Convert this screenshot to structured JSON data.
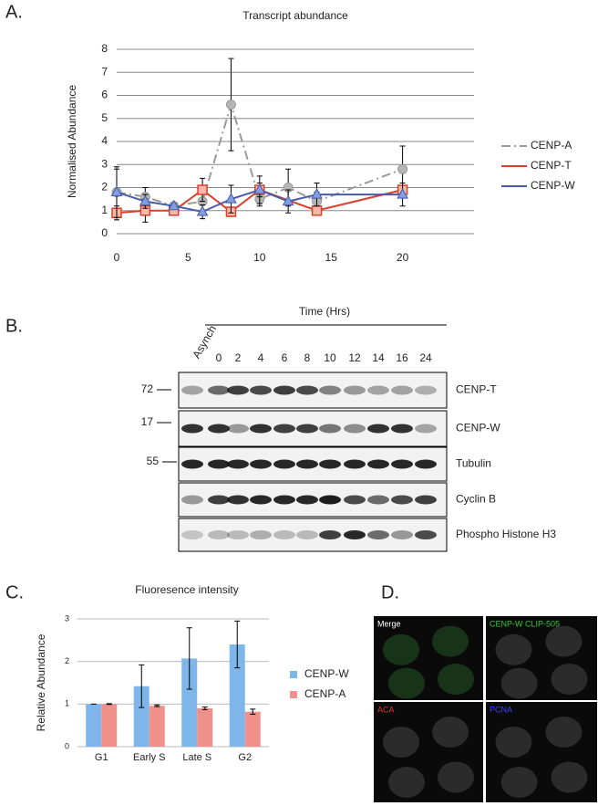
{
  "panel_labels": [
    "A.",
    "B.",
    "C.",
    "D."
  ],
  "chart_data": [
    {
      "type": "line",
      "title": "Transcript abundance",
      "y_label": "Normalised Abundance",
      "xlim": [
        0,
        25
      ],
      "xticks": [
        0,
        5,
        10,
        15,
        20
      ],
      "ylim": [
        0,
        8
      ],
      "yticks": [
        0,
        1,
        2,
        3,
        4,
        5,
        6,
        7,
        8
      ],
      "grid": true,
      "series": [
        {
          "name": "CENP-A",
          "color": "#9a9a9a",
          "x": [
            0,
            2,
            4,
            6,
            8,
            10,
            12,
            14,
            20
          ],
          "values": [
            1.8,
            1.6,
            1.2,
            1.4,
            5.6,
            1.5,
            2.0,
            1.4,
            2.8
          ],
          "errors": [
            1.0,
            0.4,
            0.1,
            0.5,
            2.0,
            0.3,
            0.8,
            0.4,
            1.0
          ]
        },
        {
          "name": "CENP-T",
          "color": "#d9412b",
          "x": [
            0,
            2,
            4,
            6,
            8,
            10,
            14,
            20
          ],
          "values": [
            0.9,
            1.0,
            1.0,
            1.9,
            0.95,
            1.9,
            1.0,
            1.9
          ],
          "errors": [
            0.3,
            0.5,
            0.1,
            0.5,
            0.2,
            0.3,
            0.1,
            0.1
          ]
        },
        {
          "name": "CENP-W",
          "color": "#4a5aa8",
          "x": [
            0,
            2,
            4,
            6,
            8,
            10,
            12,
            14,
            20
          ],
          "values": [
            1.8,
            1.4,
            1.2,
            0.95,
            1.5,
            1.9,
            1.4,
            1.7,
            1.7
          ],
          "errors": [
            1.1,
            0.3,
            0.1,
            0.3,
            0.6,
            0.6,
            0.5,
            0.5,
            0.5
          ]
        }
      ]
    },
    {
      "type": "bar",
      "title": "Fluoresence intensity",
      "y_label": "Relative Abundance",
      "categories": [
        "G1",
        "Early S",
        "Late S",
        "G2"
      ],
      "ylim": [
        0,
        3
      ],
      "yticks": [
        0,
        1,
        2,
        3
      ],
      "grid": true,
      "series": [
        {
          "name": "CENP-W",
          "color": "#7fb6ea",
          "values": [
            1.0,
            1.42,
            2.07,
            2.4
          ],
          "errors": [
            0.0,
            0.5,
            0.72,
            0.55
          ]
        },
        {
          "name": "CENP-A",
          "color": "#f0908a",
          "values": [
            1.0,
            0.96,
            0.9,
            0.82
          ],
          "errors": [
            0.01,
            0.02,
            0.03,
            0.06
          ]
        }
      ]
    }
  ],
  "blot": {
    "time_label": "Time (Hrs)",
    "lanes": [
      "Asynch",
      "0",
      "2",
      "4",
      "6",
      "8",
      "10",
      "12",
      "14",
      "16",
      "24"
    ],
    "rows": [
      "CENP-T",
      "CENP-W",
      "Tubulin",
      "Cyclin B",
      "Phospho Histone H3"
    ],
    "markers": [
      "72",
      "17",
      "55"
    ]
  },
  "microscopy": {
    "panels": [
      "Merge",
      "CENP-W CLIP-505",
      "ACA",
      "PCNA"
    ]
  }
}
